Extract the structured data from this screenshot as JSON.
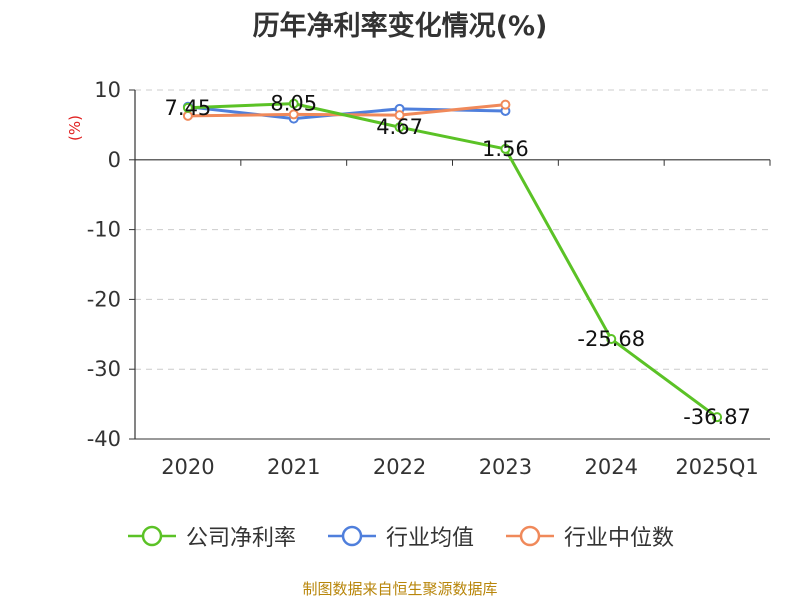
{
  "chart_data": {
    "type": "line",
    "title": "历年净利率变化情况(%)",
    "ylabel": "(%)",
    "categories": [
      "2020",
      "2021",
      "2022",
      "2023",
      "2024",
      "2025Q1"
    ],
    "ylim": [
      -40,
      10
    ],
    "yticks": [
      10,
      0,
      -10,
      -20,
      -30,
      -40
    ],
    "grid": true,
    "legend_position": "bottom",
    "series": [
      {
        "name": "公司净利率",
        "color": "#5bc226",
        "values": [
          7.45,
          8.05,
          4.67,
          1.56,
          -25.68,
          -36.87
        ],
        "labels": [
          "7.45",
          "8.05",
          "4.67",
          "1.56",
          "-25.68",
          "-36.87"
        ]
      },
      {
        "name": "行业均值",
        "color": "#4f7fdc",
        "values": [
          7.6,
          5.9,
          7.3,
          7.0,
          null,
          null
        ]
      },
      {
        "name": "行业中位数",
        "color": "#f0895a",
        "values": [
          6.3,
          6.5,
          6.4,
          7.9,
          null,
          null
        ]
      }
    ]
  },
  "source": "制图数据来自恒生聚源数据库"
}
